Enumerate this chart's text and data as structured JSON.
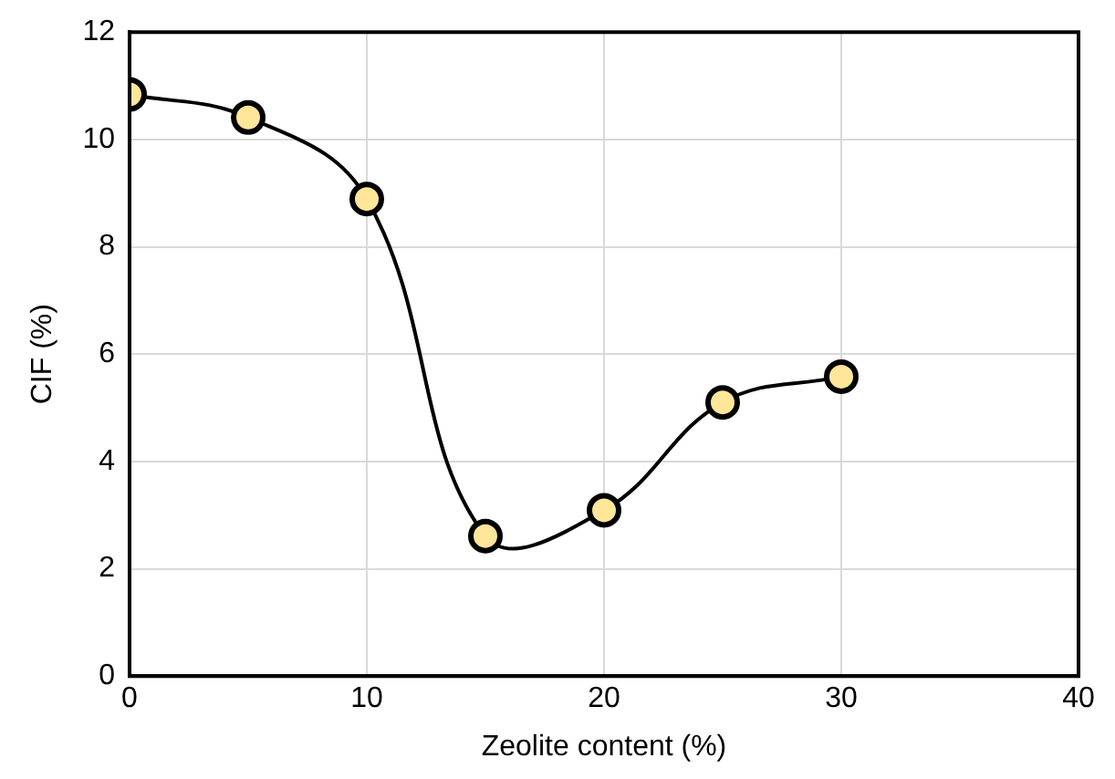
{
  "chart_data": {
    "type": "line",
    "xlabel": "Zeolite content (%)",
    "ylabel": "CIF (%)",
    "x": [
      0,
      5,
      10,
      15,
      20,
      25,
      30
    ],
    "series": [
      {
        "color": "#000000",
        "values": [
          10.84,
          10.41,
          8.89,
          2.61,
          3.09,
          5.1,
          5.58
        ]
      }
    ],
    "xlim": [
      0,
      40
    ],
    "xticks": [
      0,
      10,
      20,
      30,
      40
    ],
    "ylim": [
      0,
      12
    ],
    "yticks": [
      0,
      2,
      4,
      6,
      8,
      10,
      12
    ],
    "grid": true,
    "marker": "circle",
    "legend": false
  }
}
